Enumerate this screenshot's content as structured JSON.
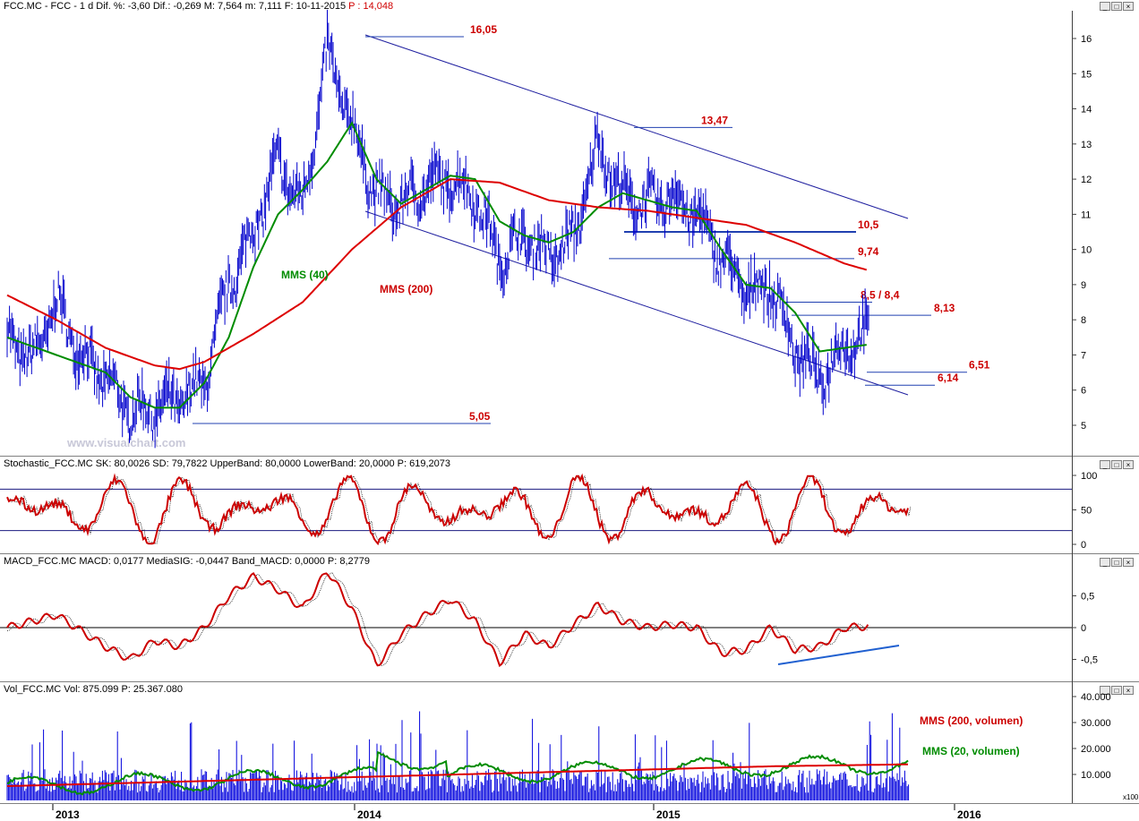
{
  "headers": {
    "price": {
      "text": "FCC.MC - FCC - 1 d Dif. %: -3,60 Dif.: -0,269 M: 7,564 m: 7,111 F: 10-11-2015",
      "p": "P : 14,048"
    },
    "stochastic": "Stochastic_FCC.MC SK: 80,0026 SD: 79,7822 UpperBand: 80,0000 LowerBand: 20,0000 P: 619,2073",
    "macd": "MACD_FCC.MC MACD: 0,0177 MediaSIG: -0,0447 Band_MACD: 0,0000 P: 8,2779",
    "volume": "Vol_FCC.MC Vol: 875.099 P: 25.367.080"
  },
  "window_buttons": [
    "_",
    "□",
    "×"
  ],
  "watermark": "www.visualchart.com",
  "volume_multiplier": "x100",
  "colors": {
    "price": "#0000cc",
    "mms40": "#008c00",
    "mms200": "#dd0000",
    "annotation": "#cc0000",
    "stoch_line": "#cc0000",
    "volume_bar": "#0000dd"
  },
  "annotations": {
    "mms40": "MMS (40)",
    "mms200": "MMS (200)",
    "mms200_vol": "MMS (200, volumen)",
    "mms20_vol": "MMS (20, volumen)",
    "levels": [
      {
        "label": "16,05",
        "value": 16.05
      },
      {
        "label": "13,47",
        "value": 13.47
      },
      {
        "label": "10,5",
        "value": 10.5
      },
      {
        "label": "9,74",
        "value": 9.74
      },
      {
        "label": "8,5 / 8,4",
        "value": 8.5
      },
      {
        "label": "8,13",
        "value": 8.13
      },
      {
        "label": "6,51",
        "value": 6.51
      },
      {
        "label": "6,14",
        "value": 6.14
      },
      {
        "label": "5,05",
        "value": 5.05
      }
    ]
  },
  "chart_data": [
    {
      "type": "line",
      "name": "price",
      "x_ticks": [
        "2013",
        "2014",
        "2015",
        "2016"
      ],
      "xlim": [
        "2012-12",
        "2016-03"
      ],
      "ylim": [
        4.3,
        16.7
      ],
      "y_ticks": [
        "5",
        "6",
        "7",
        "8",
        "9",
        "10",
        "11",
        "12",
        "13",
        "14",
        "15",
        "16"
      ],
      "series": [
        {
          "name": "FCC",
          "color": "#0000cc",
          "points": [
            [
              "2012-12",
              7.6
            ],
            [
              "2013-01",
              6.8
            ],
            [
              "2013-02",
              8.5
            ],
            [
              "2013-03",
              7.0
            ],
            [
              "2013-04",
              6.3
            ],
            [
              "2013-05",
              5.4
            ],
            [
              "2013-06",
              5.5
            ],
            [
              "2013-07",
              5.7
            ],
            [
              "2013-08",
              6.2
            ],
            [
              "2013-09",
              9.0
            ],
            [
              "2013-10",
              10.5
            ],
            [
              "2013-11",
              12.5
            ],
            [
              "2013-12",
              11.2
            ],
            [
              "2014-01",
              15.6
            ],
            [
              "2014-02",
              13.5
            ],
            [
              "2014-03",
              11.5
            ],
            [
              "2014-04",
              11.3
            ],
            [
              "2014-05",
              11.8
            ],
            [
              "2014-06",
              12.0
            ],
            [
              "2014-07",
              11.5
            ],
            [
              "2014-08",
              9.7
            ],
            [
              "2014-09",
              10.4
            ],
            [
              "2014-10",
              9.8
            ],
            [
              "2014-11",
              10.3
            ],
            [
              "2014-12",
              13.0
            ],
            [
              "2015-01",
              11.5
            ],
            [
              "2015-02",
              11.3
            ],
            [
              "2015-03",
              11.5
            ],
            [
              "2015-04",
              11.0
            ],
            [
              "2015-05",
              9.8
            ],
            [
              "2015-06",
              8.8
            ],
            [
              "2015-07",
              9.0
            ],
            [
              "2015-08",
              7.2
            ],
            [
              "2015-09",
              6.3
            ],
            [
              "2015-10",
              7.3
            ],
            [
              "2015-11",
              7.6
            ]
          ]
        },
        {
          "name": "MMS (40)",
          "color": "#008c00",
          "points": [
            [
              "2012-12",
              7.5
            ],
            [
              "2013-02",
              7.0
            ],
            [
              "2013-04",
              6.5
            ],
            [
              "2013-05",
              5.8
            ],
            [
              "2013-06",
              5.5
            ],
            [
              "2013-07",
              5.5
            ],
            [
              "2013-08",
              6.2
            ],
            [
              "2013-09",
              7.5
            ],
            [
              "2013-10",
              9.5
            ],
            [
              "2013-11",
              11.0
            ],
            [
              "2013-12",
              11.7
            ],
            [
              "2014-01",
              12.5
            ],
            [
              "2014-02",
              13.6
            ],
            [
              "2014-03",
              12.0
            ],
            [
              "2014-04",
              11.3
            ],
            [
              "2014-05",
              11.7
            ],
            [
              "2014-06",
              12.1
            ],
            [
              "2014-07",
              12.0
            ],
            [
              "2014-08",
              10.8
            ],
            [
              "2014-09",
              10.4
            ],
            [
              "2014-10",
              10.2
            ],
            [
              "2014-11",
              10.5
            ],
            [
              "2014-12",
              11.2
            ],
            [
              "2015-01",
              11.6
            ],
            [
              "2015-02",
              11.4
            ],
            [
              "2015-03",
              11.2
            ],
            [
              "2015-04",
              11.1
            ],
            [
              "2015-05",
              10.0
            ],
            [
              "2015-06",
              9.0
            ],
            [
              "2015-07",
              8.9
            ],
            [
              "2015-08",
              8.2
            ],
            [
              "2015-09",
              7.1
            ],
            [
              "2015-10",
              7.2
            ],
            [
              "2015-11",
              7.3
            ]
          ]
        },
        {
          "name": "MMS (200)",
          "color": "#dd0000",
          "points": [
            [
              "2012-12",
              8.7
            ],
            [
              "2013-02",
              8.0
            ],
            [
              "2013-04",
              7.2
            ],
            [
              "2013-06",
              6.7
            ],
            [
              "2013-07",
              6.6
            ],
            [
              "2013-08",
              6.8
            ],
            [
              "2013-10",
              7.6
            ],
            [
              "2013-12",
              8.5
            ],
            [
              "2014-02",
              10.0
            ],
            [
              "2014-04",
              11.2
            ],
            [
              "2014-06",
              12.0
            ],
            [
              "2014-08",
              11.9
            ],
            [
              "2014-10",
              11.4
            ],
            [
              "2014-12",
              11.2
            ],
            [
              "2015-02",
              11.1
            ],
            [
              "2015-04",
              10.9
            ],
            [
              "2015-06",
              10.7
            ],
            [
              "2015-08",
              10.2
            ],
            [
              "2015-10",
              9.6
            ],
            [
              "2015-11",
              9.4
            ]
          ]
        }
      ],
      "levels": [
        16.05,
        13.47,
        10.5,
        9.74,
        8.5,
        8.13,
        6.51,
        6.14,
        5.05
      ]
    },
    {
      "type": "line",
      "name": "stochastic",
      "ylim": [
        -5,
        105
      ],
      "y_ticks": [
        "0",
        "50",
        "100"
      ],
      "bands": [
        80,
        20
      ],
      "series": [
        {
          "name": "SK",
          "color": "#cc0000"
        }
      ]
    },
    {
      "type": "line",
      "name": "macd",
      "ylim": [
        -0.9,
        1.0
      ],
      "y_ticks": [
        "-0,5",
        "0",
        "0,5"
      ],
      "series": [
        {
          "name": "MACD",
          "color": "#cc0000",
          "points": [
            [
              "2012-12",
              0.0
            ],
            [
              "2013-02",
              0.2
            ],
            [
              "2013-04",
              -0.3
            ],
            [
              "2013-05",
              -0.5
            ],
            [
              "2013-06",
              -0.2
            ],
            [
              "2013-07",
              -0.3
            ],
            [
              "2013-08",
              0.0
            ],
            [
              "2013-09",
              0.5
            ],
            [
              "2013-10",
              0.8
            ],
            [
              "2013-11",
              0.6
            ],
            [
              "2013-12",
              0.3
            ],
            [
              "2014-01",
              0.9
            ],
            [
              "2014-02",
              0.3
            ],
            [
              "2014-03",
              -0.6
            ],
            [
              "2014-04",
              -0.1
            ],
            [
              "2014-05",
              0.2
            ],
            [
              "2014-06",
              0.45
            ],
            [
              "2014-07",
              0.1
            ],
            [
              "2014-08",
              -0.55
            ],
            [
              "2014-09",
              -0.1
            ],
            [
              "2014-10",
              -0.3
            ],
            [
              "2014-11",
              0.05
            ],
            [
              "2014-12",
              0.35
            ],
            [
              "2015-01",
              0.1
            ],
            [
              "2015-02",
              0.0
            ],
            [
              "2015-03",
              0.05
            ],
            [
              "2015-04",
              0.0
            ],
            [
              "2015-05",
              -0.4
            ],
            [
              "2015-06",
              -0.35
            ],
            [
              "2015-07",
              0.0
            ],
            [
              "2015-08",
              -0.35
            ],
            [
              "2015-09",
              -0.3
            ],
            [
              "2015-10",
              0.0
            ],
            [
              "2015-11",
              0.02
            ]
          ]
        }
      ]
    },
    {
      "type": "bar",
      "name": "volume",
      "ylim": [
        0,
        42000
      ],
      "y_ticks": [
        "10.000",
        "20.000",
        "30.000",
        "40.000"
      ],
      "series": [
        {
          "name": "MMS (200, volumen)",
          "color": "#dd0000"
        },
        {
          "name": "MMS (20, volumen)",
          "color": "#008c00"
        }
      ]
    }
  ]
}
